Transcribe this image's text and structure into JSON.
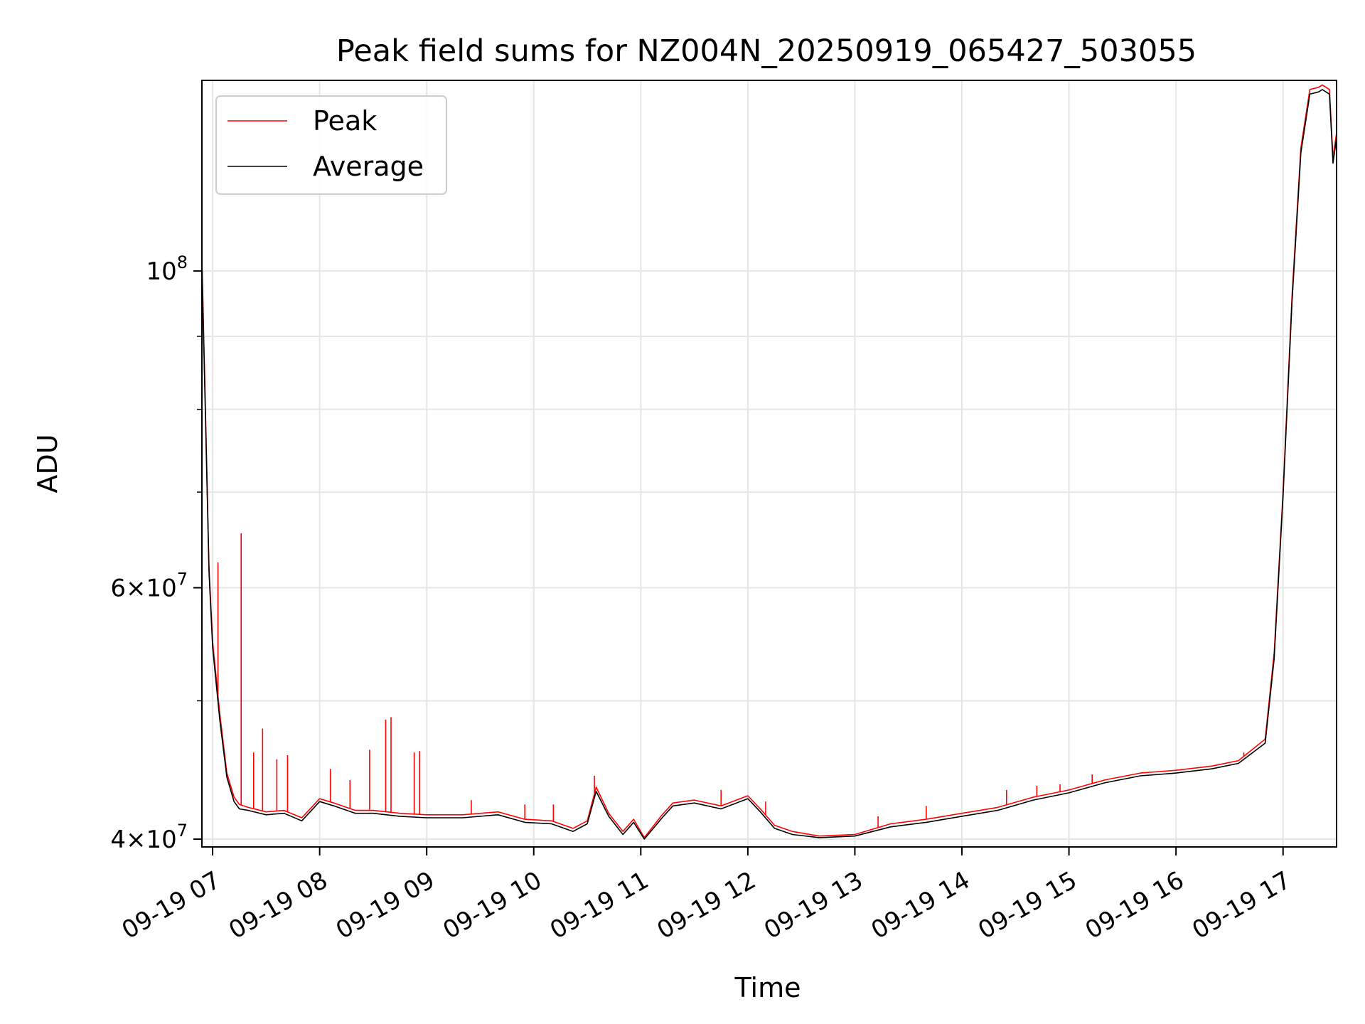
{
  "chart_data": {
    "type": "line",
    "title": "Peak field sums for NZ004N_20250919_065427_503055",
    "xlabel": "Time",
    "ylabel": "ADU",
    "y_scale": "log",
    "grid": true,
    "legend_position": "top-left",
    "xlim": [
      "2025-09-19T06:54",
      "2025-09-19T17:30"
    ],
    "ylim": [
      39500000,
      136000000
    ],
    "x_ticks": [
      {
        "value": "2025-09-19T07:00",
        "label": "09-19 07"
      },
      {
        "value": "2025-09-19T08:00",
        "label": "09-19 08"
      },
      {
        "value": "2025-09-19T09:00",
        "label": "09-19 09"
      },
      {
        "value": "2025-09-19T10:00",
        "label": "09-19 10"
      },
      {
        "value": "2025-09-19T11:00",
        "label": "09-19 11"
      },
      {
        "value": "2025-09-19T12:00",
        "label": "09-19 12"
      },
      {
        "value": "2025-09-19T13:00",
        "label": "09-19 13"
      },
      {
        "value": "2025-09-19T14:00",
        "label": "09-19 14"
      },
      {
        "value": "2025-09-19T15:00",
        "label": "09-19 15"
      },
      {
        "value": "2025-09-19T16:00",
        "label": "09-19 16"
      },
      {
        "value": "2025-09-19T17:00",
        "label": "09-19 17"
      }
    ],
    "y_major_ticks": [
      {
        "value": 40000000,
        "base": "4",
        "exp": "7"
      },
      {
        "value": 60000000,
        "base": "6",
        "exp": "7"
      },
      {
        "value": 100000000,
        "base": "",
        "exp": "8"
      }
    ],
    "y_minor_ticks": [
      50000000,
      70000000,
      80000000,
      90000000
    ],
    "series": [
      {
        "name": "Peak",
        "color": "#ff0000",
        "x": [
          "2025-09-19T06:54",
          "2025-09-19T06:56",
          "2025-09-19T06:58",
          "2025-09-19T07:00",
          "2025-09-19T07:04",
          "2025-09-19T07:08",
          "2025-09-19T07:12",
          "2025-09-19T07:15",
          "2025-09-19T07:20",
          "2025-09-19T07:30",
          "2025-09-19T07:40",
          "2025-09-19T07:50",
          "2025-09-19T08:00",
          "2025-09-19T08:08",
          "2025-09-19T08:20",
          "2025-09-19T08:30",
          "2025-09-19T08:45",
          "2025-09-19T09:00",
          "2025-09-19T09:20",
          "2025-09-19T09:40",
          "2025-09-19T09:55",
          "2025-09-19T10:10",
          "2025-09-19T10:22",
          "2025-09-19T10:30",
          "2025-09-19T10:35",
          "2025-09-19T10:42",
          "2025-09-19T10:50",
          "2025-09-19T10:56",
          "2025-09-19T11:02",
          "2025-09-19T11:12",
          "2025-09-19T11:18",
          "2025-09-19T11:30",
          "2025-09-19T11:45",
          "2025-09-19T12:00",
          "2025-09-19T12:07",
          "2025-09-19T12:15",
          "2025-09-19T12:25",
          "2025-09-19T12:40",
          "2025-09-19T13:00",
          "2025-09-19T13:20",
          "2025-09-19T13:40",
          "2025-09-19T14:00",
          "2025-09-19T14:20",
          "2025-09-19T14:40",
          "2025-09-19T15:00",
          "2025-09-19T15:20",
          "2025-09-19T15:40",
          "2025-09-19T16:00",
          "2025-09-19T16:20",
          "2025-09-19T16:35",
          "2025-09-19T16:50",
          "2025-09-19T16:55",
          "2025-09-19T17:00",
          "2025-09-19T17:05",
          "2025-09-19T17:10",
          "2025-09-19T17:15",
          "2025-09-19T17:20",
          "2025-09-19T17:22",
          "2025-09-19T17:26",
          "2025-09-19T17:28",
          "2025-09-19T17:30"
        ],
        "values": [
          102000000,
          80000000,
          62000000,
          55000000,
          49000000,
          44500000,
          42800000,
          42300000,
          42100000,
          41800000,
          41900000,
          41400000,
          42700000,
          42400000,
          41900000,
          41900000,
          41700000,
          41600000,
          41600000,
          41800000,
          41300000,
          41200000,
          40700000,
          41200000,
          43500000,
          41700000,
          40500000,
          41300000,
          40100000,
          41600000,
          42400000,
          42600000,
          42200000,
          42900000,
          42000000,
          40900000,
          40500000,
          40200000,
          40300000,
          41000000,
          41300000,
          41700000,
          42100000,
          42800000,
          43300000,
          44000000,
          44500000,
          44700000,
          45000000,
          45400000,
          47000000,
          54000000,
          70000000,
          96000000,
          122000000,
          134000000,
          134500000,
          135000000,
          134000000,
          120000000,
          125000000
        ],
        "spikes": [
          {
            "x": "2025-09-19T07:03",
            "y": 62500000
          },
          {
            "x": "2025-09-19T07:16",
            "y": 65500000
          },
          {
            "x": "2025-09-19T07:23",
            "y": 46000000
          },
          {
            "x": "2025-09-19T07:28",
            "y": 47800000
          },
          {
            "x": "2025-09-19T07:36",
            "y": 45500000
          },
          {
            "x": "2025-09-19T07:42",
            "y": 45800000
          },
          {
            "x": "2025-09-19T08:06",
            "y": 44800000
          },
          {
            "x": "2025-09-19T08:17",
            "y": 44000000
          },
          {
            "x": "2025-09-19T08:28",
            "y": 46200000
          },
          {
            "x": "2025-09-19T08:37",
            "y": 48500000
          },
          {
            "x": "2025-09-19T08:40",
            "y": 48700000
          },
          {
            "x": "2025-09-19T08:53",
            "y": 46000000
          },
          {
            "x": "2025-09-19T08:56",
            "y": 46100000
          },
          {
            "x": "2025-09-19T09:25",
            "y": 42600000
          },
          {
            "x": "2025-09-19T09:55",
            "y": 42300000
          },
          {
            "x": "2025-09-19T10:11",
            "y": 42300000
          },
          {
            "x": "2025-09-19T10:34",
            "y": 44300000
          },
          {
            "x": "2025-09-19T11:45",
            "y": 43300000
          },
          {
            "x": "2025-09-19T12:10",
            "y": 42500000
          },
          {
            "x": "2025-09-19T13:13",
            "y": 41500000
          },
          {
            "x": "2025-09-19T13:40",
            "y": 42200000
          },
          {
            "x": "2025-09-19T14:25",
            "y": 43300000
          },
          {
            "x": "2025-09-19T14:42",
            "y": 43600000
          },
          {
            "x": "2025-09-19T14:55",
            "y": 43700000
          },
          {
            "x": "2025-09-19T15:13",
            "y": 44400000
          },
          {
            "x": "2025-09-19T16:38",
            "y": 46000000
          }
        ]
      },
      {
        "name": "Average",
        "color": "#000000",
        "x": [
          "2025-09-19T06:54",
          "2025-09-19T06:56",
          "2025-09-19T06:58",
          "2025-09-19T07:00",
          "2025-09-19T07:04",
          "2025-09-19T07:08",
          "2025-09-19T07:12",
          "2025-09-19T07:15",
          "2025-09-19T07:20",
          "2025-09-19T07:30",
          "2025-09-19T07:40",
          "2025-09-19T07:50",
          "2025-09-19T08:00",
          "2025-09-19T08:08",
          "2025-09-19T08:20",
          "2025-09-19T08:30",
          "2025-09-19T08:45",
          "2025-09-19T09:00",
          "2025-09-19T09:20",
          "2025-09-19T09:40",
          "2025-09-19T09:55",
          "2025-09-19T10:10",
          "2025-09-19T10:22",
          "2025-09-19T10:30",
          "2025-09-19T10:35",
          "2025-09-19T10:42",
          "2025-09-19T10:50",
          "2025-09-19T10:56",
          "2025-09-19T11:02",
          "2025-09-19T11:12",
          "2025-09-19T11:18",
          "2025-09-19T11:30",
          "2025-09-19T11:45",
          "2025-09-19T12:00",
          "2025-09-19T12:07",
          "2025-09-19T12:15",
          "2025-09-19T12:25",
          "2025-09-19T12:40",
          "2025-09-19T13:00",
          "2025-09-19T13:20",
          "2025-09-19T13:40",
          "2025-09-19T14:00",
          "2025-09-19T14:20",
          "2025-09-19T14:40",
          "2025-09-19T15:00",
          "2025-09-19T15:20",
          "2025-09-19T15:40",
          "2025-09-19T16:00",
          "2025-09-19T16:20",
          "2025-09-19T16:35",
          "2025-09-19T16:50",
          "2025-09-19T16:55",
          "2025-09-19T17:00",
          "2025-09-19T17:05",
          "2025-09-19T17:10",
          "2025-09-19T17:15",
          "2025-09-19T17:20",
          "2025-09-19T17:22",
          "2025-09-19T17:26",
          "2025-09-19T17:28",
          "2025-09-19T17:30"
        ],
        "values": [
          101000000,
          79000000,
          61500000,
          54500000,
          48500000,
          44200000,
          42500000,
          42000000,
          41900000,
          41600000,
          41700000,
          41200000,
          42500000,
          42200000,
          41700000,
          41700000,
          41500000,
          41400000,
          41400000,
          41600000,
          41100000,
          41000000,
          40500000,
          41000000,
          43200000,
          41500000,
          40300000,
          41100000,
          40000000,
          41400000,
          42200000,
          42400000,
          42000000,
          42700000,
          41800000,
          40700000,
          40300000,
          40100000,
          40200000,
          40800000,
          41100000,
          41500000,
          41900000,
          42600000,
          43100000,
          43800000,
          44300000,
          44500000,
          44800000,
          45200000,
          46700000,
          53500000,
          69500000,
          95000000,
          121000000,
          133000000,
          133500000,
          134000000,
          133000000,
          119000000,
          124000000
        ]
      }
    ]
  }
}
